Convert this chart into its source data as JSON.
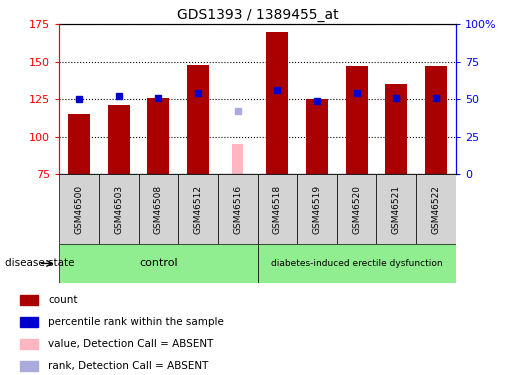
{
  "title": "GDS1393 / 1389455_at",
  "samples": [
    "GSM46500",
    "GSM46503",
    "GSM46508",
    "GSM46512",
    "GSM46516",
    "GSM46518",
    "GSM46519",
    "GSM46520",
    "GSM46521",
    "GSM46522"
  ],
  "count_values": [
    115,
    121,
    126,
    148,
    null,
    170,
    125,
    147,
    135,
    147
  ],
  "absent_count_value": 95,
  "absent_count_index": 4,
  "percentile_values": [
    125,
    127,
    126,
    129,
    null,
    131,
    124,
    129,
    126,
    126
  ],
  "absent_percentile_value": 117,
  "absent_percentile_index": 4,
  "ylim_left": [
    75,
    175
  ],
  "ylim_right": [
    0,
    100
  ],
  "yticks_left": [
    75,
    100,
    125,
    150,
    175
  ],
  "yticks_right": [
    0,
    25,
    50,
    75,
    100
  ],
  "yticklabels_right": [
    "0",
    "25",
    "50",
    "75",
    "100%"
  ],
  "bar_color": "#AA0000",
  "absent_bar_color": "#FFB6C1",
  "percentile_color": "#0000CC",
  "absent_percentile_color": "#AAAADD",
  "group_control": [
    0,
    1,
    2,
    3,
    4
  ],
  "group_diabetes": [
    5,
    6,
    7,
    8,
    9
  ],
  "group_control_label": "control",
  "group_diabetes_label": "diabetes-induced erectile dysfunction",
  "disease_state_label": "disease state",
  "group_color": "#90EE90",
  "legend_items": [
    {
      "label": "count",
      "color": "#AA0000"
    },
    {
      "label": "percentile rank within the sample",
      "color": "#0000CC"
    },
    {
      "label": "value, Detection Call = ABSENT",
      "color": "#FFB6C1"
    },
    {
      "label": "rank, Detection Call = ABSENT",
      "color": "#AAAADD"
    }
  ],
  "bar_width": 0.55,
  "percentile_marker_size": 5,
  "grid_color": "black",
  "sample_box_color": "#D3D3D3"
}
